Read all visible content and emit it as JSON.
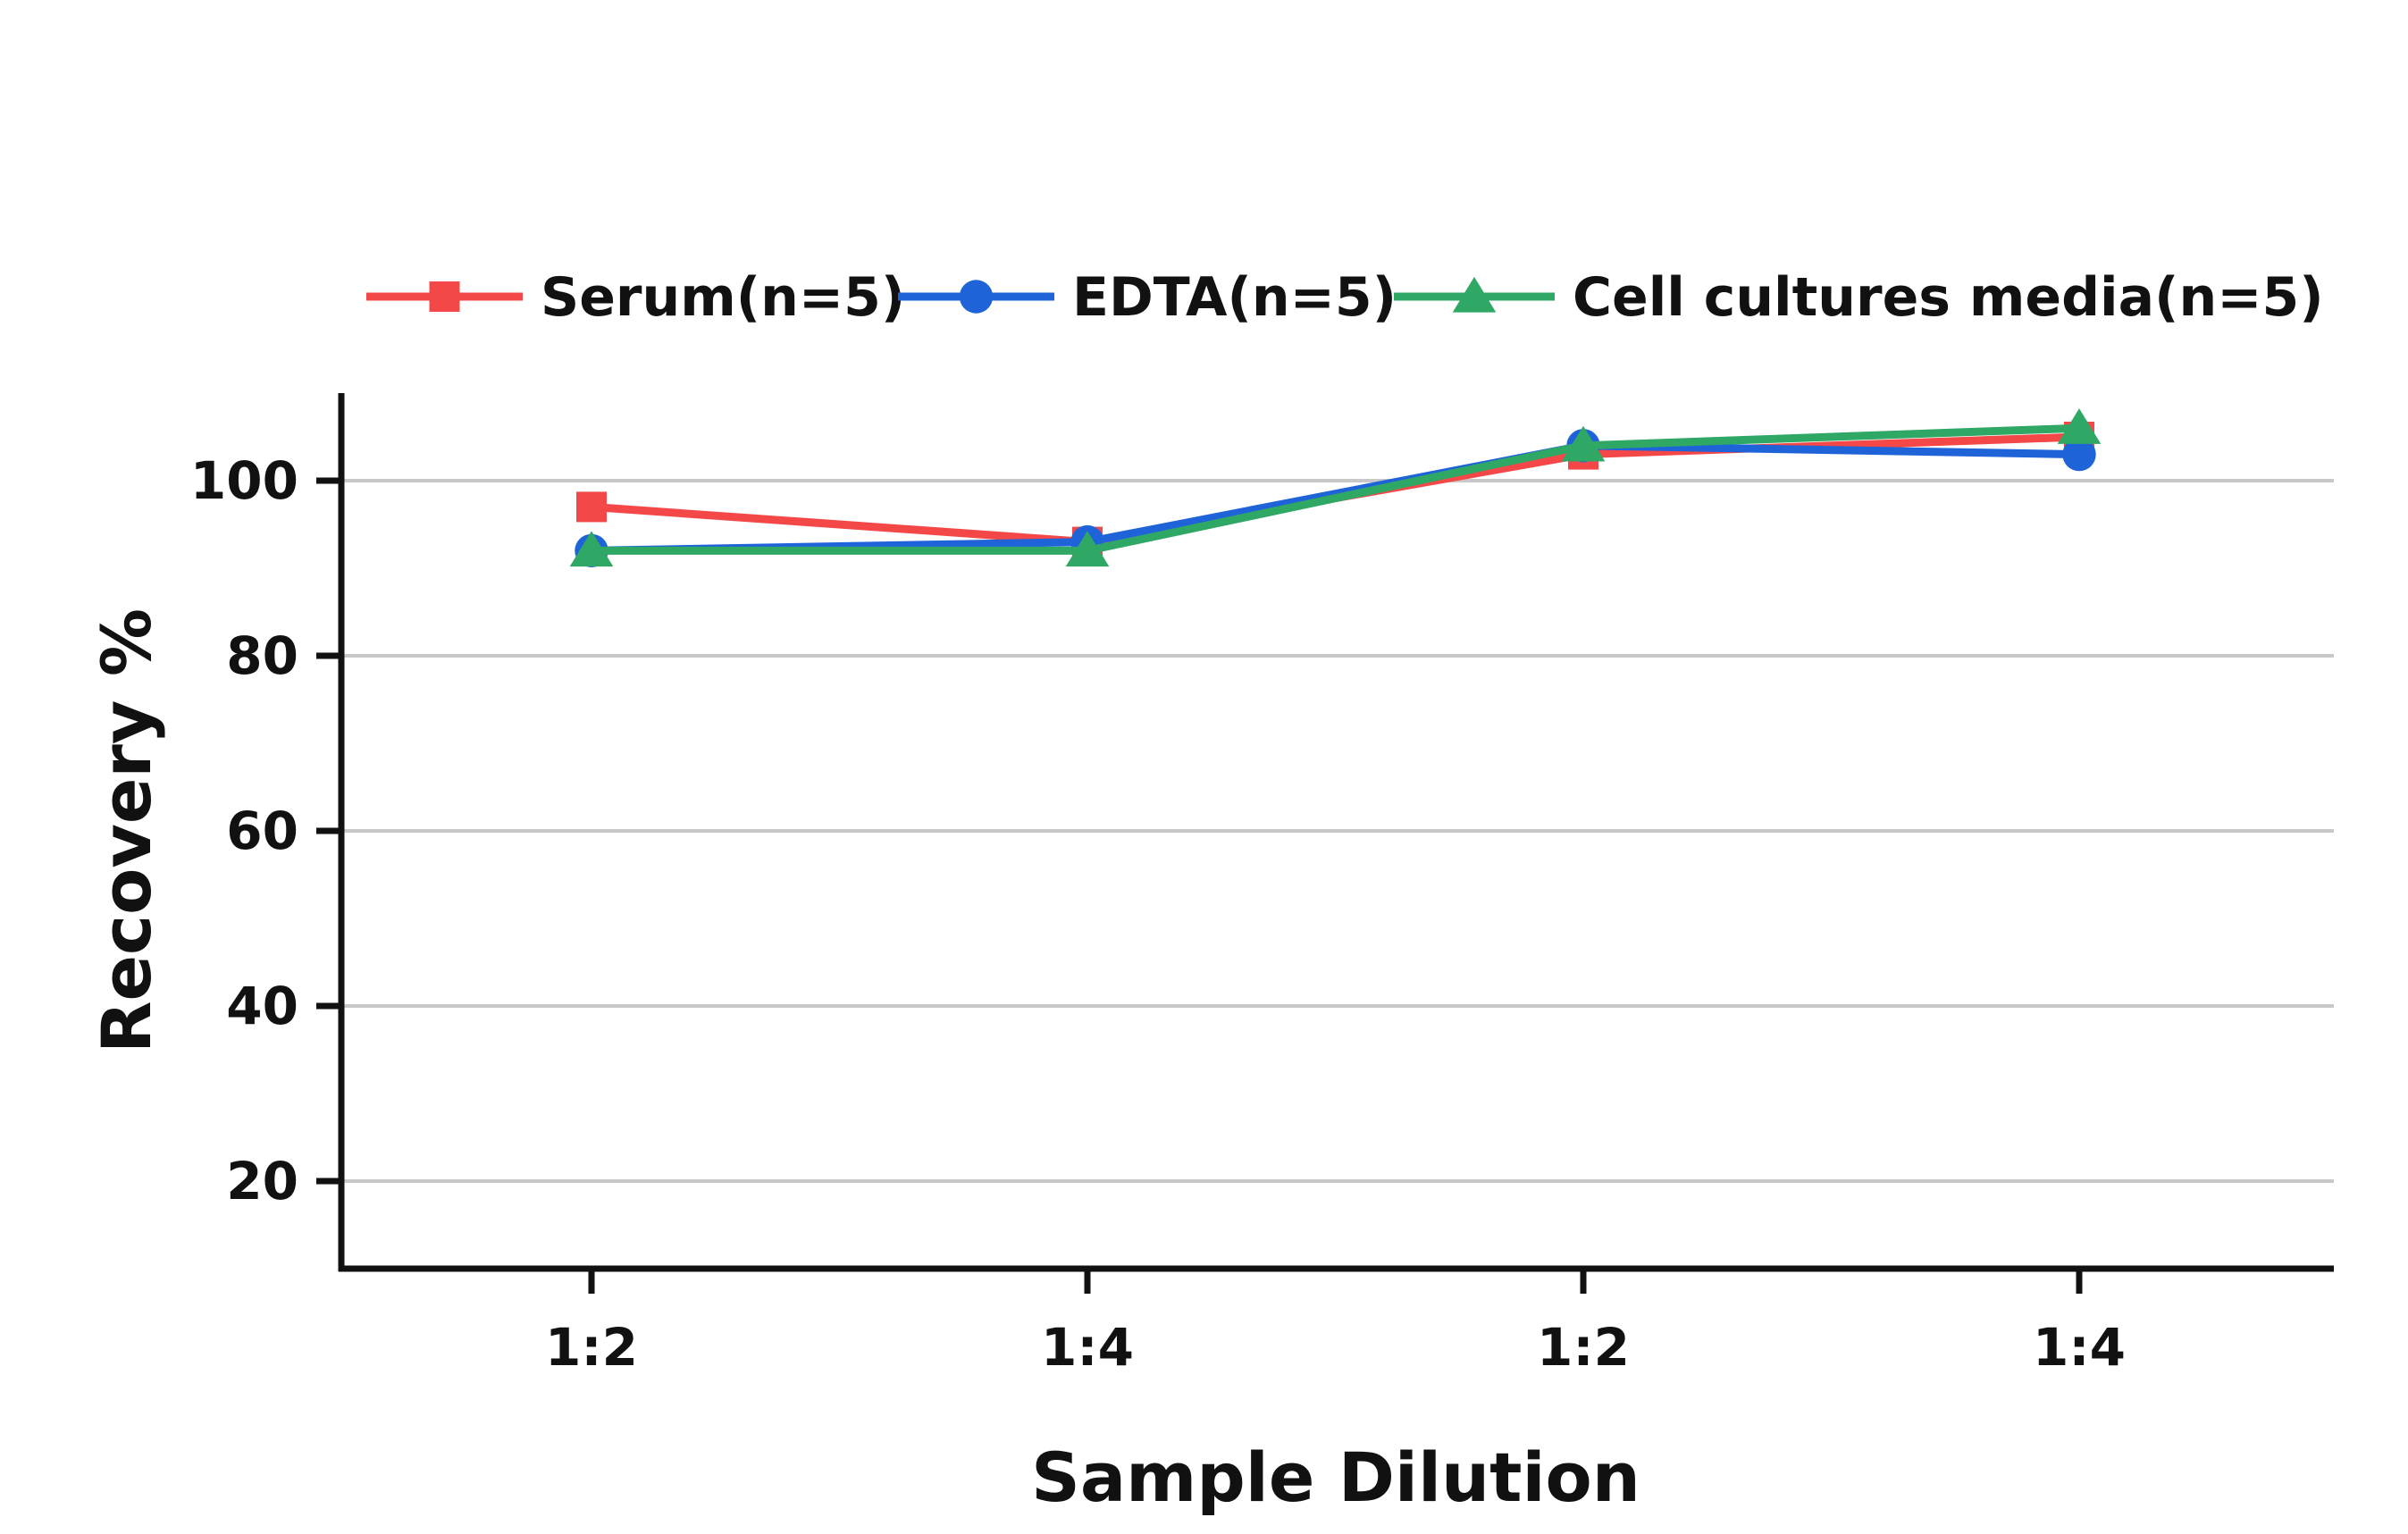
{
  "chart_data": {
    "type": "line",
    "categories": [
      "1:2",
      "1:4",
      "1:2",
      "1:4"
    ],
    "xlabel": "Sample Dilution",
    "ylabel": "Recovery %",
    "ylim": [
      10,
      110
    ],
    "yticks": [
      20,
      40,
      60,
      80,
      100
    ],
    "grid": true,
    "legend_position": "top",
    "series": [
      {
        "name": "Serum(n=5)",
        "color": "#f44848",
        "marker": "square",
        "values": [
          97,
          93,
          103,
          105
        ]
      },
      {
        "name": "EDTA(n=5)",
        "color": "#1f63d8",
        "marker": "circle",
        "values": [
          92,
          93,
          104,
          103
        ]
      },
      {
        "name": "Cell cultures media(n=5)",
        "color": "#2fa866",
        "marker": "triangle",
        "values": [
          92,
          92,
          104,
          106
        ]
      }
    ]
  }
}
